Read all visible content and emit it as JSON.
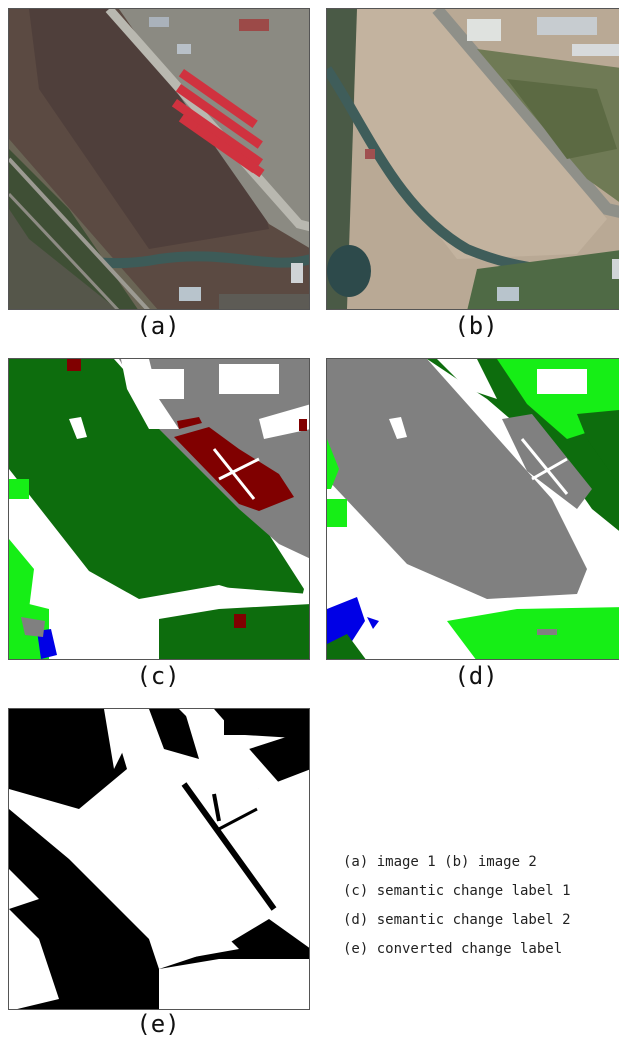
{
  "panels": {
    "a": {
      "caption": "(a)"
    },
    "b": {
      "caption": "(b)"
    },
    "c": {
      "caption": "(c)"
    },
    "d": {
      "caption": "(d)"
    },
    "e": {
      "caption": "(e)"
    }
  },
  "legend": {
    "line1": "(a) image 1 (b) image 2",
    "line2": "(c) semantic change label 1",
    "line3": "(d) semantic change label 2",
    "line4": "(e) converted change label"
  },
  "colors": {
    "low_vegetation": "#0d6d0d",
    "tree_light_green": "#16ee16",
    "building": "#800000",
    "ground_gray": "#808080",
    "water": "#0000e6",
    "background": "#ffffff"
  }
}
